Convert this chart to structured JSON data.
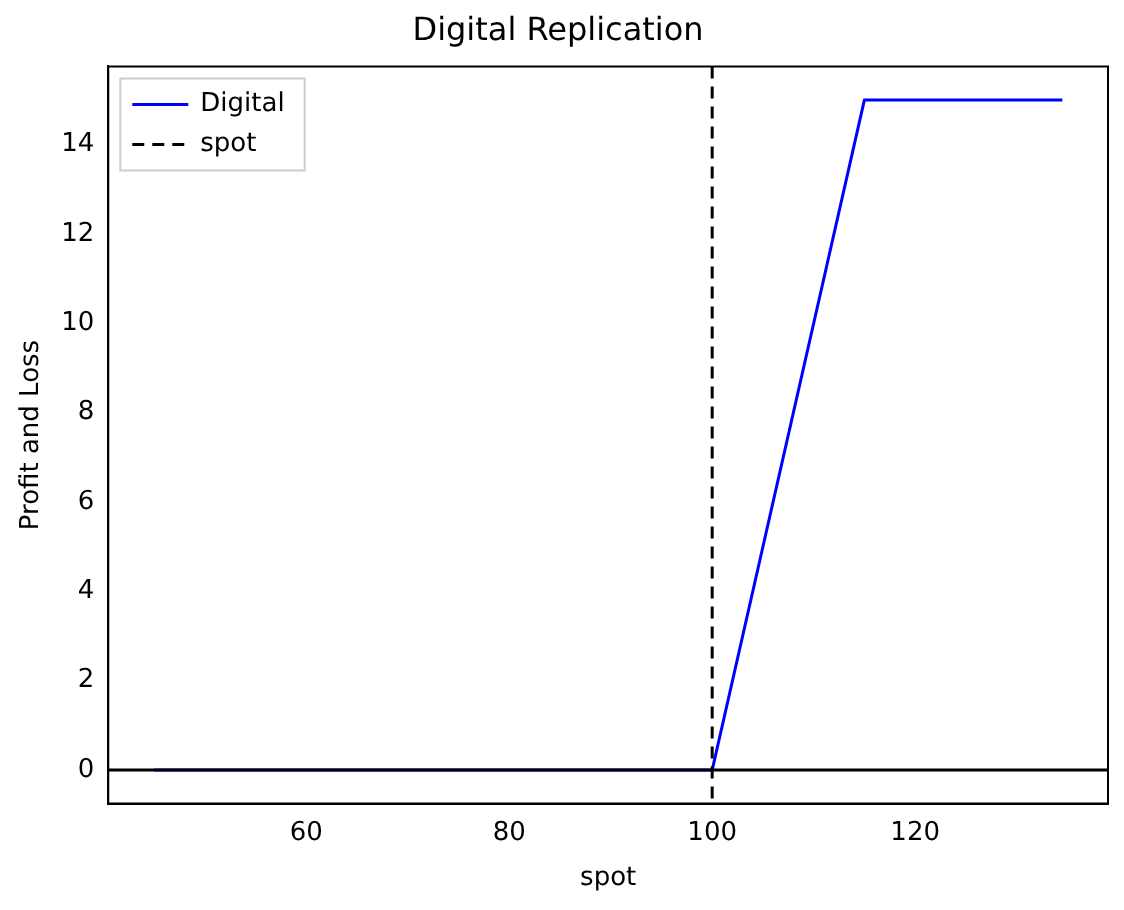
{
  "chart_data": {
    "type": "line",
    "title": "Digital Replication",
    "xlabel": "spot",
    "ylabel": "Profit and Loss",
    "x": [
      45,
      100,
      115,
      134.5
    ],
    "series": [
      {
        "name": "Digital",
        "color": "#0000ff",
        "values": [
          0,
          0,
          15,
          15
        ]
      }
    ],
    "xlim": [
      40.5,
      139
    ],
    "xticks": [
      60,
      80,
      100,
      120
    ],
    "ylim": [
      -0.75,
      15.75
    ],
    "yticks": [
      0,
      2,
      4,
      6,
      8,
      10,
      12,
      14
    ],
    "ref_lines": [
      {
        "axis": "x",
        "value": 100,
        "label": "spot",
        "color": "#000000",
        "line_style": "dashed"
      },
      {
        "axis": "y",
        "value": 0,
        "color": "#000000",
        "line_style": "solid"
      }
    ],
    "legend": "top left",
    "marker": "none",
    "line_style": "solid",
    "grid": false
  }
}
